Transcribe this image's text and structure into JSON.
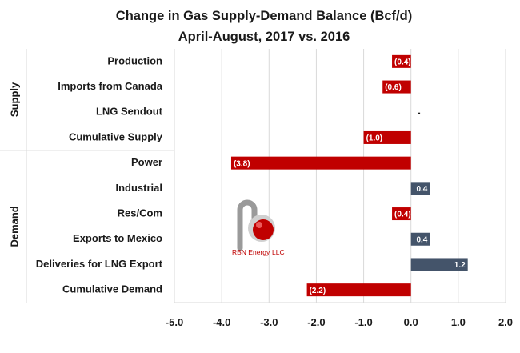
{
  "title_line1": "Change in Gas Supply-Demand Balance  (Bcf/d)",
  "title_line2": "April-August, 2017 vs. 2016",
  "groups": [
    {
      "label": "Supply",
      "start": 0,
      "end": 3
    },
    {
      "label": "Demand",
      "start": 4,
      "end": 9
    }
  ],
  "logo": {
    "text": "RBN Energy",
    "suffix": "LLC"
  },
  "colors": {
    "negative": "#c00000",
    "positive": "#44546a",
    "grid": "#d9d9d9"
  },
  "chart_data": {
    "type": "bar",
    "orientation": "horizontal",
    "title": "Change in Gas Supply-Demand Balance  (Bcf/d) April-August, 2017 vs. 2016",
    "categories": [
      "Production",
      "Imports from Canada",
      "LNG Sendout",
      "Cumulative Supply",
      "Power",
      "Industrial",
      "Res/Com",
      "Exports to Mexico",
      "Deliveries for LNG Export",
      "Cumulative Demand"
    ],
    "values": [
      -0.4,
      -0.6,
      0,
      -1.0,
      -3.8,
      0.4,
      -0.4,
      0.4,
      1.2,
      -2.2
    ],
    "data_labels": [
      "(0.4)",
      "(0.6)",
      "-",
      "(1.0)",
      "(3.8)",
      "0.4",
      "(0.4)",
      "0.4",
      "1.2",
      "(2.2)"
    ],
    "xlim": [
      -5.0,
      2.0
    ],
    "ticks": [
      -5.0,
      -4.0,
      -3.0,
      -2.0,
      -1.0,
      0.0,
      1.0,
      2.0
    ],
    "tick_labels": [
      "-5.0",
      "-4.0",
      "-3.0",
      "-2.0",
      "-1.0",
      "0.0",
      "1.0",
      "2.0"
    ],
    "grid": true,
    "legend": "none"
  }
}
